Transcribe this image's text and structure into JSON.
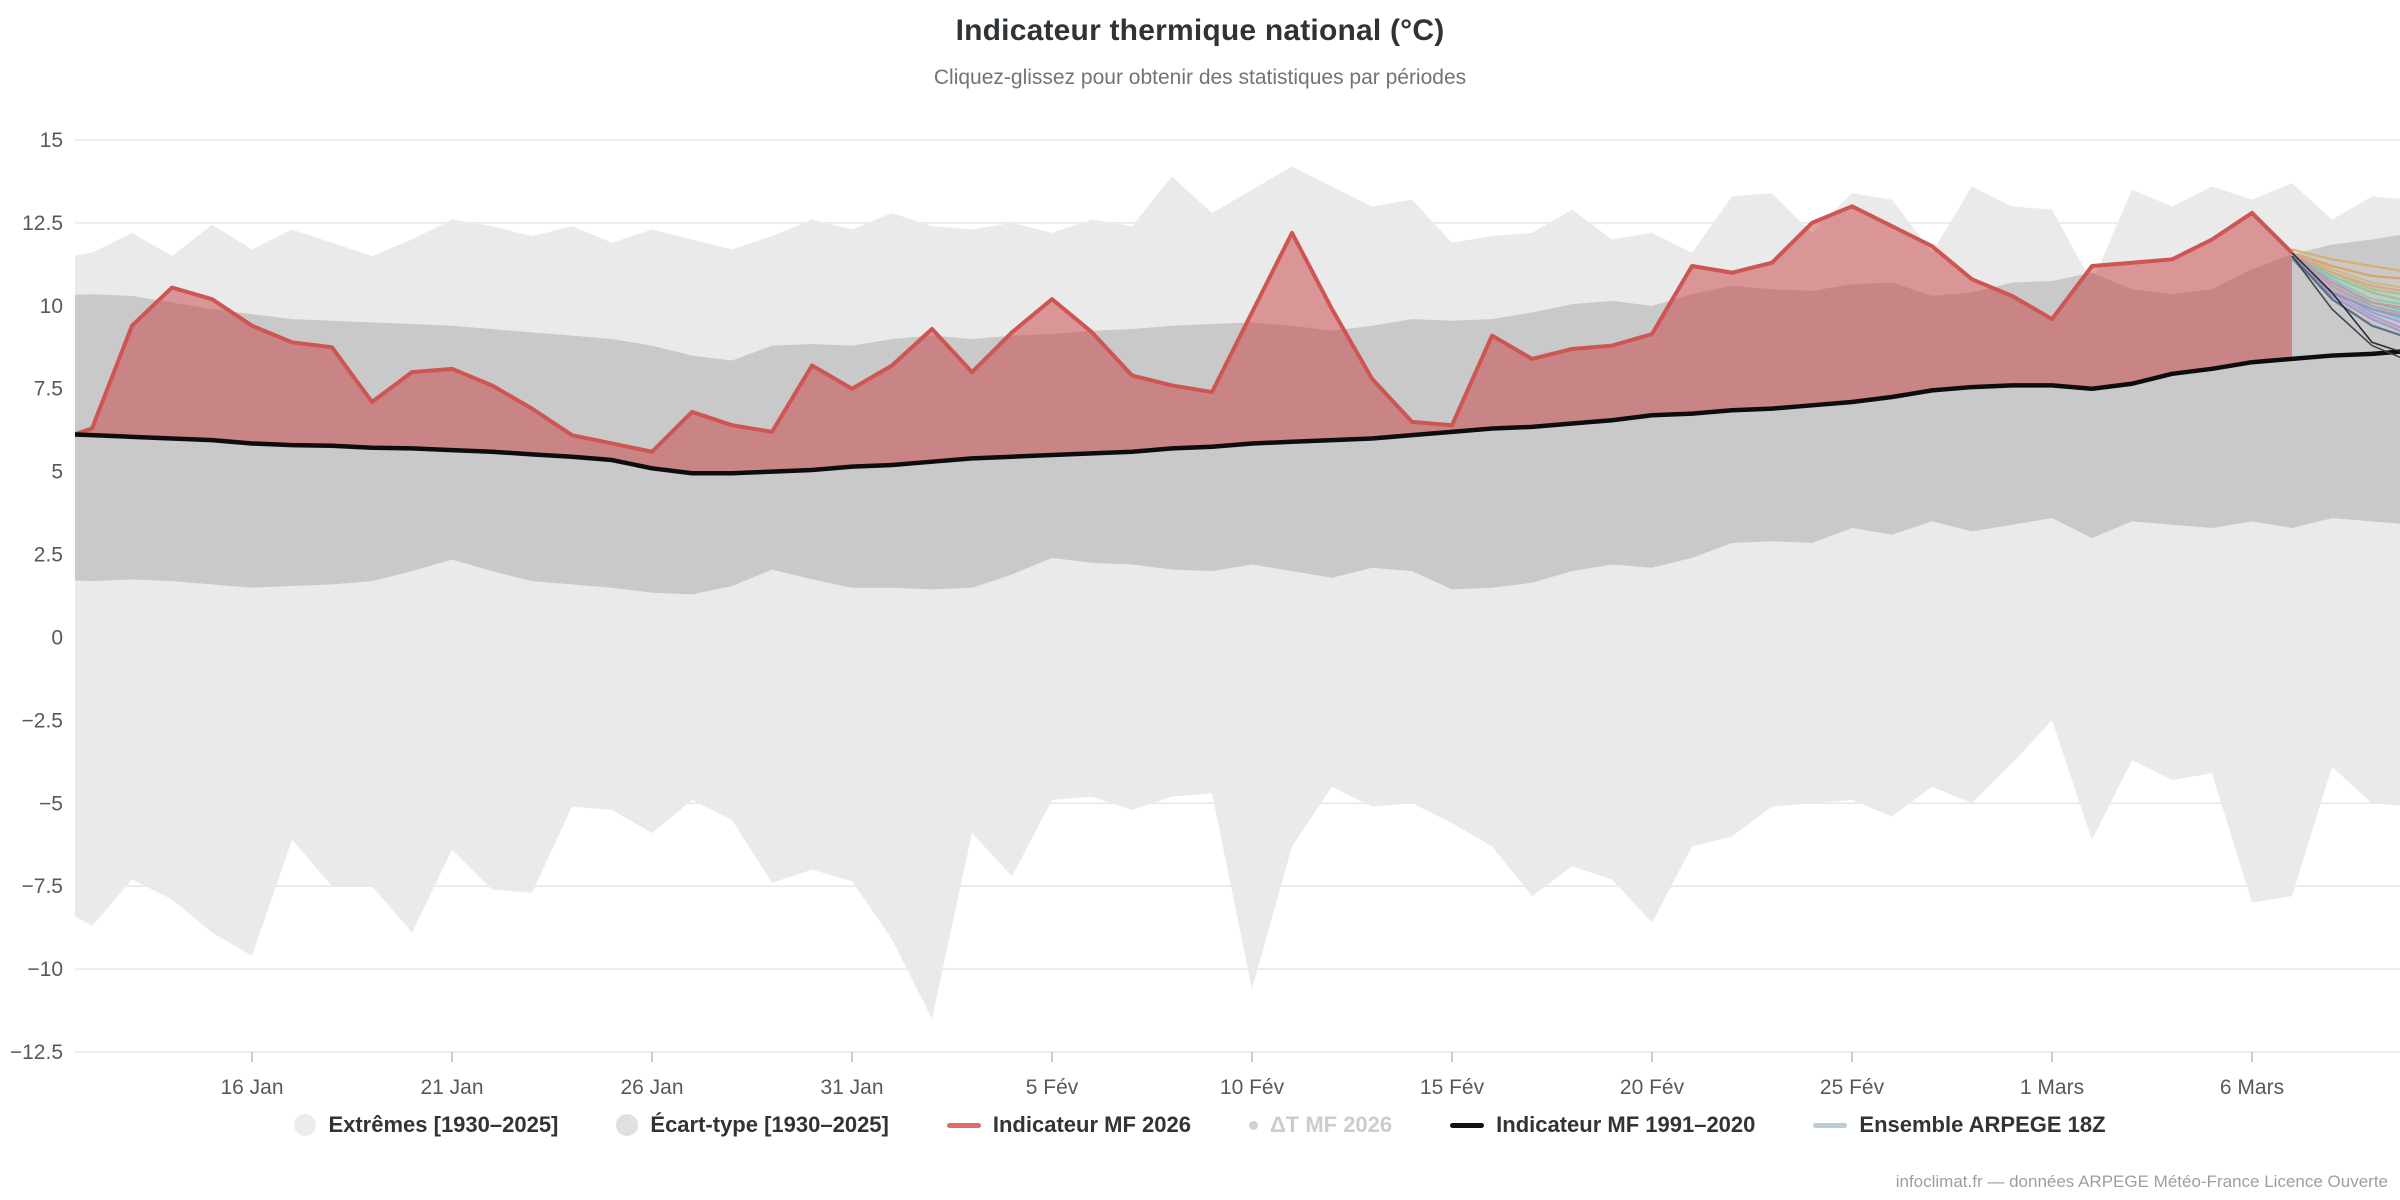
{
  "header": {
    "title": "Indicateur thermique national (°C)",
    "subtitle": "Cliquez-glissez pour obtenir des statistiques par périodes"
  },
  "credit": "infoclimat.fr — données ARPEGE Météo-France Licence Ouverte",
  "legend": {
    "items": [
      {
        "label": "Extrêmes [1930–2025]",
        "marker": "circle",
        "color": "#ececec",
        "disabled": false
      },
      {
        "label": "Écart-type [1930–2025]",
        "marker": "circle",
        "color": "#e0e0e0",
        "disabled": false
      },
      {
        "label": "Indicateur MF 2026",
        "marker": "line",
        "color": "#e2696b",
        "disabled": false
      },
      {
        "label": "ΔT MF 2026",
        "marker": "dot",
        "color": "#d0d0d0",
        "disabled": true
      },
      {
        "label": "Indicateur MF 1991–2020",
        "marker": "line",
        "color": "#111111",
        "disabled": false
      },
      {
        "label": "Ensemble ARPEGE 18Z",
        "marker": "line",
        "color": "#b9cdd9",
        "disabled": false
      }
    ]
  },
  "chart_data": {
    "type": "area",
    "title": "Indicateur thermique national (°C)",
    "xlabel": "",
    "ylabel": "",
    "ylim": [
      -12.5,
      15
    ],
    "grid": true,
    "x_axis": {
      "start_label": "11 Jan",
      "step_days": 1,
      "ticks": [
        {
          "index": 5,
          "label": "16 Jan"
        },
        {
          "index": 10,
          "label": "21 Jan"
        },
        {
          "index": 15,
          "label": "26 Jan"
        },
        {
          "index": 20,
          "label": "31 Jan"
        },
        {
          "index": 25,
          "label": "5 Fév"
        },
        {
          "index": 30,
          "label": "10 Fév"
        },
        {
          "index": 35,
          "label": "15 Fév"
        },
        {
          "index": 40,
          "label": "20 Fév"
        },
        {
          "index": 45,
          "label": "25 Fév"
        },
        {
          "index": 50,
          "label": "1 Mars"
        },
        {
          "index": 55,
          "label": "6 Mars"
        }
      ]
    },
    "y_axis": {
      "ticks": [
        {
          "v": 15,
          "label": "15"
        },
        {
          "v": 12.5,
          "label": "12.5"
        },
        {
          "v": 10,
          "label": "10"
        },
        {
          "v": 7.5,
          "label": "7.5"
        },
        {
          "v": 5,
          "label": "5"
        },
        {
          "v": 2.5,
          "label": "2.5"
        },
        {
          "v": 0,
          "label": "0"
        },
        {
          "v": -2.5,
          "label": "−2.5"
        },
        {
          "v": -5,
          "label": "−5"
        },
        {
          "v": -7.5,
          "label": "−7.5"
        },
        {
          "v": -10,
          "label": "−10"
        },
        {
          "v": -12.5,
          "label": "−12.5"
        }
      ]
    },
    "series": [
      {
        "name": "Extrêmes [1930–2025]",
        "type": "arearange",
        "color": "#eaeaea",
        "upper": [
          11.4,
          11.6,
          12.2,
          11.5,
          12.45,
          11.7,
          12.3,
          11.9,
          11.5,
          12.0,
          12.6,
          12.4,
          12.1,
          12.4,
          11.9,
          12.3,
          12.0,
          11.7,
          12.1,
          12.6,
          12.3,
          12.8,
          12.4,
          12.3,
          12.5,
          12.2,
          12.6,
          12.4,
          13.9,
          12.8,
          13.5,
          14.2,
          13.6,
          13.0,
          13.2,
          11.9,
          12.1,
          12.2,
          12.9,
          12.0,
          12.2,
          11.6,
          13.3,
          13.4,
          12.2,
          13.4,
          13.2,
          11.6,
          13.6,
          13.0,
          12.9,
          10.7,
          13.5,
          13.0,
          13.6,
          13.2,
          13.7,
          12.6,
          13.3,
          13.2
        ],
        "lower": [
          -8.0,
          -8.7,
          -7.3,
          -7.9,
          -8.9,
          -9.6,
          -6.1,
          -7.5,
          -7.5,
          -8.9,
          -6.4,
          -7.6,
          -7.7,
          -5.1,
          -5.2,
          -5.9,
          -4.9,
          -5.5,
          -7.4,
          -7.0,
          -7.35,
          -9.1,
          -11.5,
          -5.9,
          -7.2,
          -4.9,
          -4.8,
          -5.2,
          -4.8,
          -4.7,
          -10.6,
          -6.3,
          -4.5,
          -5.1,
          -5.0,
          -5.6,
          -6.3,
          -7.8,
          -6.9,
          -7.3,
          -8.6,
          -6.3,
          -6.0,
          -5.1,
          -5.0,
          -4.9,
          -5.4,
          -4.5,
          -5.0,
          -3.8,
          -2.5,
          -6.1,
          -3.7,
          -4.3,
          -4.1,
          -8.0,
          -7.8,
          -3.9,
          -5.0,
          -5.1
        ]
      },
      {
        "name": "Écart-type [1930–2025]",
        "type": "arearange",
        "color": "#c9c9c9",
        "upper": [
          10.3,
          10.35,
          10.3,
          10.1,
          9.9,
          9.75,
          9.6,
          9.55,
          9.5,
          9.45,
          9.4,
          9.3,
          9.2,
          9.1,
          9.0,
          8.8,
          8.5,
          8.35,
          8.8,
          8.85,
          8.8,
          9.0,
          9.1,
          9.0,
          9.1,
          9.15,
          9.25,
          9.3,
          9.4,
          9.45,
          9.5,
          9.4,
          9.25,
          9.4,
          9.6,
          9.55,
          9.6,
          9.8,
          10.05,
          10.15,
          10.0,
          10.35,
          10.6,
          10.5,
          10.45,
          10.65,
          10.7,
          10.3,
          10.4,
          10.7,
          10.75,
          11.0,
          10.5,
          10.35,
          10.5,
          11.1,
          11.55,
          11.85,
          12.0,
          12.2
        ],
        "lower": [
          1.75,
          1.7,
          1.75,
          1.7,
          1.6,
          1.5,
          1.55,
          1.6,
          1.7,
          2.0,
          2.35,
          2.0,
          1.7,
          1.6,
          1.5,
          1.35,
          1.3,
          1.55,
          2.05,
          1.75,
          1.5,
          1.5,
          1.45,
          1.5,
          1.9,
          2.4,
          2.25,
          2.2,
          2.05,
          2.0,
          2.2,
          2.0,
          1.8,
          2.1,
          2.0,
          1.45,
          1.5,
          1.65,
          2.0,
          2.2,
          2.1,
          2.4,
          2.85,
          2.9,
          2.85,
          3.3,
          3.1,
          3.5,
          3.2,
          3.4,
          3.6,
          3.0,
          3.5,
          3.4,
          3.3,
          3.5,
          3.3,
          3.6,
          3.5,
          3.4
        ]
      },
      {
        "name": "Indicateur MF 2026",
        "type": "line",
        "color": "#cf5552",
        "fill": "rgba(202,66,66,0.5)",
        "fill_to": "Indicateur MF 1991–2020",
        "values": [
          5.9,
          6.3,
          9.4,
          10.55,
          10.2,
          9.4,
          8.9,
          8.75,
          7.1,
          8.0,
          8.1,
          7.6,
          6.9,
          6.1,
          5.85,
          5.6,
          6.8,
          6.4,
          6.2,
          8.2,
          7.5,
          8.2,
          9.3,
          8.0,
          9.2,
          10.2,
          9.2,
          7.9,
          7.6,
          7.4,
          9.8,
          12.2,
          9.9,
          7.8,
          6.5,
          6.4,
          9.1,
          8.4,
          8.7,
          8.8,
          9.15,
          11.2,
          11.0,
          11.3,
          12.5,
          13.0,
          12.4,
          11.8,
          10.8,
          10.3,
          9.6,
          11.2,
          11.3,
          11.4,
          12.0,
          12.8,
          11.6
        ]
      },
      {
        "name": "ΔT MF 2026",
        "type": "line",
        "color": "#cccccc",
        "visible": false,
        "values": []
      },
      {
        "name": "Indicateur MF 1991–2020",
        "type": "line",
        "color": "#0d0d0d",
        "values": [
          6.15,
          6.1,
          6.05,
          6.0,
          5.95,
          5.85,
          5.8,
          5.78,
          5.72,
          5.7,
          5.65,
          5.6,
          5.52,
          5.45,
          5.35,
          5.1,
          4.95,
          4.95,
          5.0,
          5.05,
          5.15,
          5.2,
          5.3,
          5.4,
          5.45,
          5.5,
          5.55,
          5.6,
          5.7,
          5.75,
          5.85,
          5.9,
          5.95,
          6.0,
          6.1,
          6.2,
          6.3,
          6.35,
          6.45,
          6.55,
          6.7,
          6.75,
          6.85,
          6.9,
          7.0,
          7.1,
          7.25,
          7.45,
          7.55,
          7.6,
          7.6,
          7.5,
          7.65,
          7.95,
          8.1,
          8.3,
          8.4,
          8.5,
          8.55,
          8.65
        ]
      },
      {
        "name": "Ensemble ARPEGE 18Z",
        "type": "multiline",
        "start_index": 56,
        "members": [
          {
            "color": "#d8b06a",
            "values": [
              11.7,
              11.4,
              11.2,
              11.0
            ]
          },
          {
            "color": "#dda05f",
            "values": [
              11.6,
              11.2,
              10.9,
              10.8
            ]
          },
          {
            "color": "#c9bc7d",
            "values": [
              11.6,
              11.1,
              10.7,
              10.5
            ]
          },
          {
            "color": "#adc27f",
            "values": [
              11.5,
              11.0,
              10.5,
              10.3
            ]
          },
          {
            "color": "#93c493",
            "values": [
              11.6,
              10.9,
              10.4,
              10.1
            ]
          },
          {
            "color": "#84cdb0",
            "values": [
              11.5,
              10.8,
              10.2,
              10.0
            ]
          },
          {
            "color": "#72c3c0",
            "values": [
              11.5,
              10.7,
              10.1,
              9.8
            ]
          },
          {
            "color": "#7fc3da",
            "values": [
              11.6,
              10.8,
              10.0,
              9.6
            ]
          },
          {
            "color": "#8fb9dd",
            "values": [
              11.5,
              10.6,
              9.9,
              9.5
            ]
          },
          {
            "color": "#93a3d6",
            "values": [
              11.4,
              10.5,
              9.8,
              9.4
            ]
          },
          {
            "color": "#af9cd4",
            "values": [
              11.5,
              10.4,
              9.7,
              9.2
            ]
          },
          {
            "color": "#a197c4",
            "values": [
              11.4,
              10.3,
              9.6,
              9.1
            ]
          },
          {
            "color": "#dba2b6",
            "values": [
              11.5,
              10.5,
              9.9,
              9.7
            ]
          },
          {
            "color": "#d68f9e",
            "values": [
              11.6,
              10.7,
              10.1,
              9.9
            ]
          },
          {
            "color": "#dca28e",
            "values": [
              11.6,
              11.0,
              10.6,
              10.4
            ]
          },
          {
            "color": "#a9a9a9",
            "values": [
              11.5,
              10.6,
              10.0,
              9.7
            ]
          },
          {
            "color": "#8b9bb0",
            "values": [
              11.4,
              10.4,
              9.9,
              9.6
            ]
          },
          {
            "color": "#5a6a85",
            "values": [
              11.5,
              10.2,
              9.4,
              9.0
            ]
          },
          {
            "color": "#3a3f48",
            "values": [
              11.5,
              9.9,
              8.8,
              8.3
            ]
          },
          {
            "color": "#23262e",
            "values": [
              11.6,
              10.4,
              8.9,
              8.5
            ]
          }
        ]
      }
    ]
  }
}
